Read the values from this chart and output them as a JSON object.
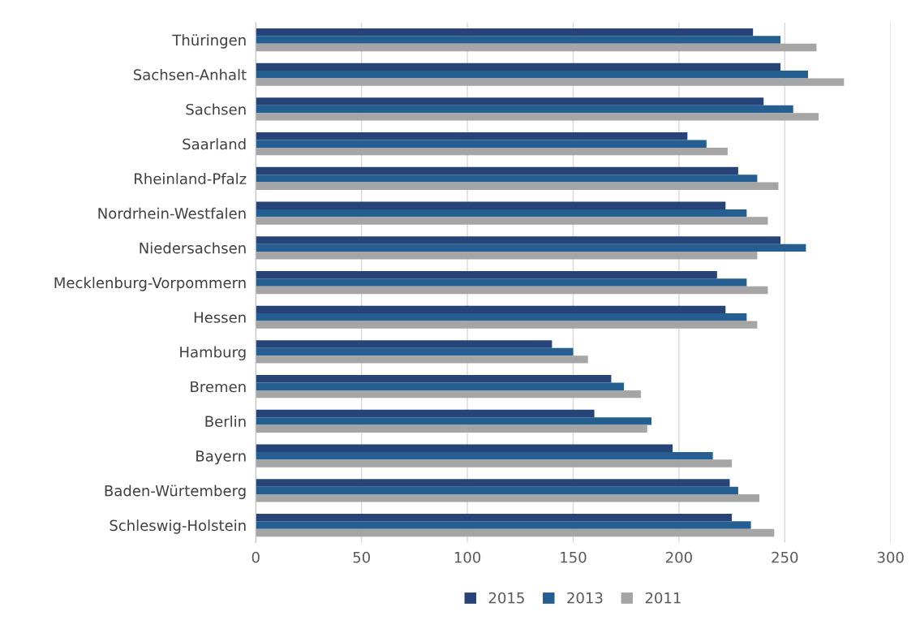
{
  "chart_data": {
    "type": "bar",
    "orientation": "horizontal",
    "categories": [
      "Thüringen",
      "Sachsen-Anhalt",
      "Sachsen",
      "Saarland",
      "Rheinland-Pfalz",
      "Nordrhein-Westfalen",
      "Niedersachsen",
      "Mecklenburg-Vorpommern",
      "Hessen",
      "Hamburg",
      "Bremen",
      "Berlin",
      "Bayern",
      "Baden-Würtemberg",
      "Schleswig-Holstein"
    ],
    "series": [
      {
        "name": "2015",
        "color": "#264478",
        "values": [
          235,
          248,
          240,
          204,
          228,
          222,
          248,
          218,
          222,
          140,
          168,
          160,
          197,
          224,
          225
        ]
      },
      {
        "name": "2013",
        "color": "#255e91",
        "values": [
          248,
          261,
          254,
          213,
          237,
          232,
          260,
          232,
          232,
          150,
          174,
          187,
          216,
          228,
          234
        ]
      },
      {
        "name": "2011",
        "color": "#a5a5a5",
        "values": [
          265,
          278,
          266,
          223,
          247,
          242,
          237,
          242,
          237,
          157,
          182,
          185,
          225,
          238,
          245
        ]
      }
    ],
    "xlim": [
      0,
      300
    ],
    "xticks": [
      0,
      50,
      100,
      150,
      200,
      250,
      300
    ],
    "grid": "x",
    "legend": "bottom"
  }
}
